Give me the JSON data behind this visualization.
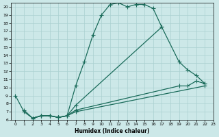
{
  "xlabel": "Humidex (Indice chaleur)",
  "bg_color": "#cce8e8",
  "grid_color": "#aad0d0",
  "line_color": "#1a6b5a",
  "xlim": [
    -0.5,
    23
  ],
  "ylim": [
    6,
    20.5
  ],
  "xticks": [
    0,
    1,
    2,
    3,
    4,
    5,
    6,
    7,
    8,
    9,
    10,
    11,
    12,
    13,
    14,
    15,
    16,
    17,
    18,
    19,
    20,
    21,
    22,
    23
  ],
  "yticks": [
    6,
    7,
    8,
    9,
    10,
    11,
    12,
    13,
    14,
    15,
    16,
    17,
    18,
    19,
    20
  ],
  "line1_x": [
    0,
    1,
    2,
    3,
    4,
    5,
    6,
    7,
    8,
    9,
    10,
    11,
    12,
    13,
    14,
    15,
    16,
    17
  ],
  "line1_y": [
    9,
    7,
    6.2,
    6.5,
    6.5,
    6.3,
    6.5,
    10.2,
    13.2,
    16.5,
    19.0,
    20.3,
    20.5,
    20.0,
    20.3,
    20.3,
    19.8,
    17.5
  ],
  "line2_x": [
    1,
    2,
    3,
    4,
    5,
    6,
    7,
    17,
    19,
    20,
    21,
    22
  ],
  "line2_y": [
    7.2,
    6.2,
    6.5,
    6.5,
    6.3,
    6.5,
    7.8,
    17.5,
    13.2,
    12.2,
    11.5,
    10.5
  ],
  "line3_x": [
    2,
    3,
    4,
    5,
    6,
    7,
    19,
    20,
    21,
    22
  ],
  "line3_y": [
    6.2,
    6.5,
    6.5,
    6.3,
    6.5,
    7.2,
    10.2,
    10.2,
    10.8,
    10.5
  ],
  "line4_x": [
    2,
    3,
    4,
    5,
    6,
    7,
    22
  ],
  "line4_y": [
    6.2,
    6.5,
    6.5,
    6.3,
    6.5,
    7.0,
    10.2
  ]
}
